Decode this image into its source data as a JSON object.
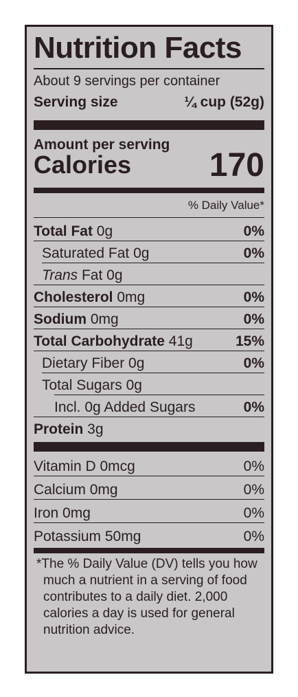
{
  "title": "Nutrition Facts",
  "servings_per_container": "About 9 servings per container",
  "serving_size": {
    "label": "Serving size",
    "value": "¼ cup (52g)"
  },
  "amount_per_serving": "Amount per serving",
  "calories": {
    "label": "Calories",
    "value": "170"
  },
  "daily_value_header": "% Daily Value*",
  "nutrients": [
    {
      "bold_name": "Total Fat",
      "amount": " 0g",
      "dv": "0%"
    },
    {
      "name": "Saturated Fat",
      "amount": " 0g",
      "dv": "0%"
    },
    {
      "italic_name": "Trans",
      "name": " Fat",
      "amount": " 0g",
      "dv": ""
    },
    {
      "bold_name": "Cholesterol",
      "amount": " 0mg",
      "dv": "0%"
    },
    {
      "bold_name": "Sodium",
      "amount": " 0mg",
      "dv": "0%"
    },
    {
      "bold_name": "Total Carbohydrate",
      "amount": " 41g",
      "dv": "15%"
    },
    {
      "name": "Dietary Fiber",
      "amount": " 0g",
      "dv": "0%"
    },
    {
      "name": "Total Sugars",
      "amount": " 0g",
      "dv": ""
    },
    {
      "name": "Incl. 0g Added Sugars",
      "amount": "",
      "dv": "0%"
    },
    {
      "bold_name": "Protein",
      "amount": " 3g",
      "dv": ""
    }
  ],
  "vitamins": [
    {
      "name": "Vitamin D",
      "amount": " 0mcg",
      "dv": "0%"
    },
    {
      "name": "Calcium",
      "amount": " 0mg",
      "dv": "0%"
    },
    {
      "name": "Iron",
      "amount": " 0mg",
      "dv": "0%"
    },
    {
      "name": "Potassium",
      "amount": " 50mg",
      "dv": "0%"
    }
  ],
  "footnote": "*The % Daily Value (DV) tells you how much a nutrient in a serving of food contributes to a daily diet. 2,000 calories a day is used for general nutrition advice.",
  "colors": {
    "label_bg": "#c9c7c8",
    "ink": "#2a1e21"
  }
}
